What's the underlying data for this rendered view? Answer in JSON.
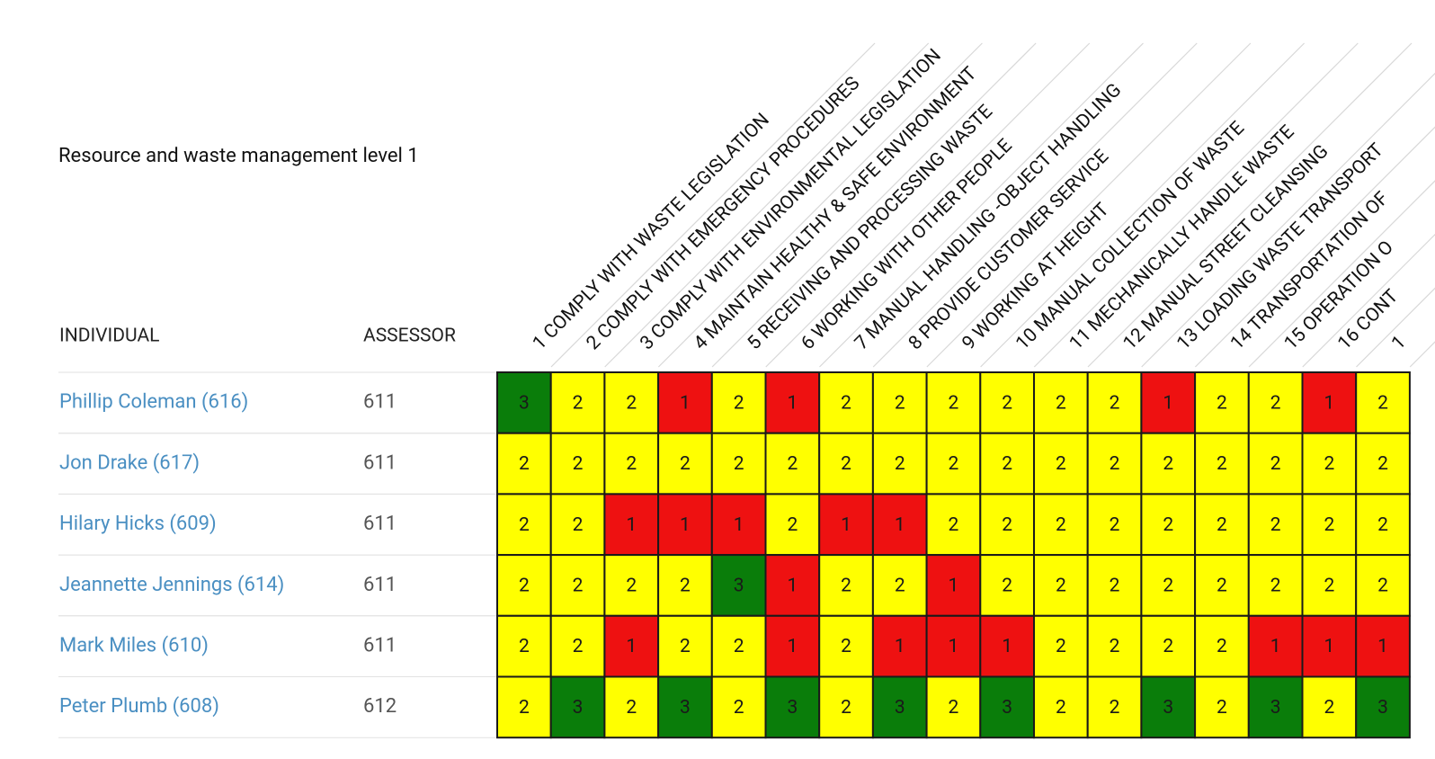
{
  "header": {
    "title": "Resource and waste management level 1"
  },
  "table": {
    "columns": {
      "individual": "INDIVIDUAL",
      "assessor": "ASSESSOR"
    },
    "skills": [
      "1 COMPLY WITH WASTE LEGISLATION",
      "2 COMPLY WITH EMERGENCY PROCEDURES",
      "3 COMPLY WITH ENVIRONMENTAL LEGISLATION",
      "4 MAINTAIN HEALTHY & SAFE ENVIRONMENT",
      "5 RECEIVING AND PROCESSING WASTE",
      "6 WORKING WITH OTHER PEOPLE",
      "7 MANUAL HANDLING -OBJECT HANDLING",
      "8 PROVIDE CUSTOMER SERVICE",
      "9 WORKING AT HEIGHT",
      "10 MANUAL COLLECTION OF WASTE",
      "11 MECHANICALLY HANDLE WASTE",
      "12 MANUAL STREET CLEANSING",
      "13 LOADING WASTE TRANSPORT",
      "14 TRANSPORTATION OF",
      "15 OPERATION O",
      "16 CONT",
      "1"
    ],
    "level_colors": {
      "1": "#ee1111",
      "2": "#ffff00",
      "3": "#0a7d0a"
    },
    "rows": [
      {
        "individual": "Phillip Coleman (616)",
        "assessor": "611",
        "levels": [
          3,
          2,
          2,
          1,
          2,
          1,
          2,
          2,
          2,
          2,
          2,
          2,
          1,
          2,
          2,
          1,
          2
        ]
      },
      {
        "individual": "Jon Drake (617)",
        "assessor": "611",
        "levels": [
          2,
          2,
          2,
          2,
          2,
          2,
          2,
          2,
          2,
          2,
          2,
          2,
          2,
          2,
          2,
          2,
          2
        ]
      },
      {
        "individual": "Hilary Hicks (609)",
        "assessor": "611",
        "levels": [
          2,
          2,
          1,
          1,
          1,
          2,
          1,
          1,
          2,
          2,
          2,
          2,
          2,
          2,
          2,
          2,
          2
        ]
      },
      {
        "individual": "Jeannette Jennings (614)",
        "assessor": "611",
        "levels": [
          2,
          2,
          2,
          2,
          3,
          1,
          2,
          2,
          1,
          2,
          2,
          2,
          2,
          2,
          2,
          2,
          2
        ]
      },
      {
        "individual": "Mark Miles (610)",
        "assessor": "611",
        "levels": [
          2,
          2,
          1,
          2,
          2,
          1,
          2,
          1,
          1,
          1,
          2,
          2,
          2,
          2,
          1,
          1,
          1
        ]
      },
      {
        "individual": "Peter Plumb (608)",
        "assessor": "612",
        "levels": [
          2,
          3,
          2,
          3,
          2,
          3,
          2,
          3,
          2,
          3,
          2,
          2,
          3,
          2,
          3,
          2,
          3
        ]
      }
    ]
  }
}
